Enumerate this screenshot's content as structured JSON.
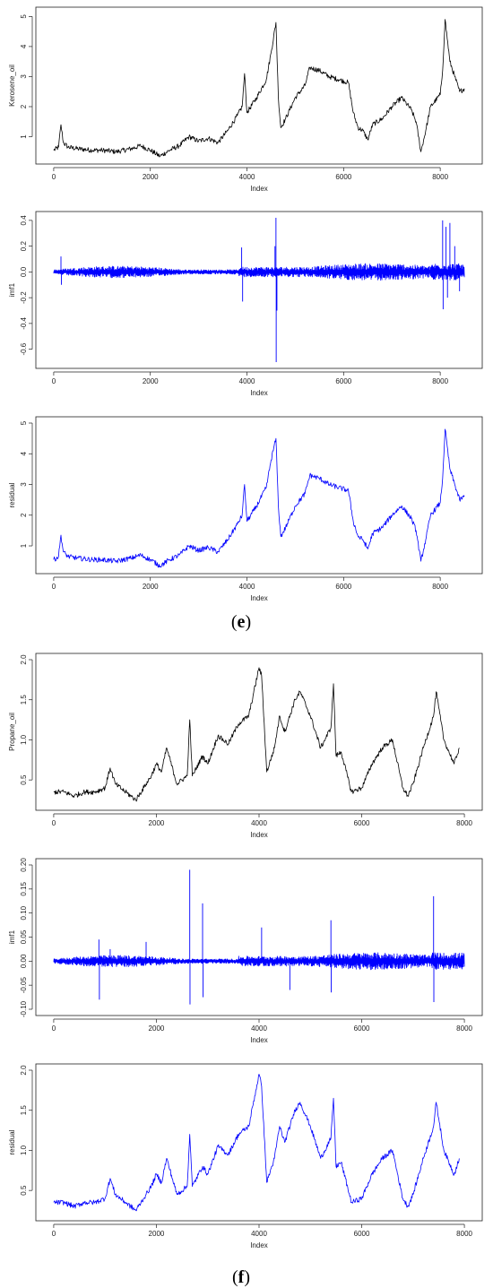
{
  "panel_labels": [
    "e",
    "f"
  ],
  "chart_data": [
    {
      "type": "line",
      "xlabel": "Index",
      "ylabel": "Kerosene_oil",
      "color": "#000000",
      "xlim": [
        0,
        8500
      ],
      "ylim": [
        0.3,
        5.1
      ],
      "xticks": [
        0,
        2000,
        4000,
        6000,
        8000
      ],
      "yticks": [
        1,
        2,
        3,
        4,
        5
      ],
      "ytick_labels": [
        "1",
        "2",
        "3",
        "4",
        "5"
      ],
      "x": [
        0,
        100,
        150,
        200,
        300,
        500,
        800,
        1000,
        1300,
        1600,
        1800,
        2000,
        2200,
        2400,
        2600,
        2800,
        3000,
        3200,
        3400,
        3600,
        3800,
        3900,
        3950,
        4000,
        4200,
        4400,
        4500,
        4600,
        4650,
        4700,
        4800,
        5000,
        5200,
        5300,
        5500,
        5700,
        5900,
        6100,
        6200,
        6300,
        6400,
        6500,
        6600,
        6800,
        7000,
        7200,
        7400,
        7500,
        7600,
        7700,
        7800,
        8000,
        8050,
        8100,
        8200,
        8300,
        8400,
        8500
      ],
      "y": [
        0.55,
        0.65,
        1.4,
        0.8,
        0.65,
        0.6,
        0.55,
        0.55,
        0.5,
        0.6,
        0.7,
        0.55,
        0.35,
        0.55,
        0.7,
        1.0,
        0.85,
        0.95,
        0.8,
        1.2,
        1.7,
        2.0,
        3.1,
        1.8,
        2.3,
        2.9,
        3.8,
        4.8,
        2.3,
        1.3,
        1.6,
        2.3,
        2.7,
        3.3,
        3.2,
        3.0,
        2.9,
        2.8,
        1.8,
        1.3,
        1.2,
        0.9,
        1.4,
        1.6,
        2.0,
        2.3,
        1.9,
        1.5,
        0.5,
        1.2,
        2.0,
        2.4,
        3.2,
        4.9,
        3.5,
        3.0,
        2.5,
        2.6
      ]
    },
    {
      "type": "line",
      "xlabel": "Index",
      "ylabel": "imf1",
      "color": "#0000ff",
      "xlim": [
        0,
        8500
      ],
      "ylim": [
        -0.7,
        0.42
      ],
      "xticks": [
        0,
        2000,
        4000,
        6000,
        8000
      ],
      "yticks": [
        -0.6,
        -0.4,
        -0.2,
        0.0,
        0.2,
        0.4
      ],
      "ytick_labels": [
        "-0.6",
        "-0.4",
        "-0.2",
        "0.0",
        "0.2",
        "0.4"
      ],
      "n": 8500,
      "spikes": [
        {
          "x": 150,
          "v": 0.12
        },
        {
          "x": 160,
          "v": -0.1
        },
        {
          "x": 3890,
          "v": 0.19
        },
        {
          "x": 3910,
          "v": -0.23
        },
        {
          "x": 4600,
          "v": 0.42
        },
        {
          "x": 4605,
          "v": -0.7
        },
        {
          "x": 4580,
          "v": 0.2
        },
        {
          "x": 4620,
          "v": -0.3
        },
        {
          "x": 8050,
          "v": 0.4
        },
        {
          "x": 8060,
          "v": -0.29
        },
        {
          "x": 8120,
          "v": 0.35
        },
        {
          "x": 8200,
          "v": 0.38
        },
        {
          "x": 8150,
          "v": -0.2
        },
        {
          "x": 8300,
          "v": 0.2
        },
        {
          "x": 8400,
          "v": -0.15
        }
      ]
    },
    {
      "type": "line",
      "xlabel": "Index",
      "ylabel": "residual",
      "color": "#0000ff",
      "xlim": [
        0,
        8500
      ],
      "ylim": [
        0.3,
        5.0
      ],
      "xticks": [
        0,
        2000,
        4000,
        6000,
        8000
      ],
      "yticks": [
        1,
        2,
        3,
        4,
        5
      ],
      "ytick_labels": [
        "1",
        "2",
        "3",
        "4",
        "5"
      ],
      "x": [
        0,
        100,
        150,
        200,
        300,
        500,
        800,
        1000,
        1300,
        1600,
        1800,
        2000,
        2200,
        2400,
        2600,
        2800,
        3000,
        3200,
        3400,
        3600,
        3800,
        3900,
        3950,
        4000,
        4200,
        4400,
        4500,
        4600,
        4650,
        4700,
        4800,
        5000,
        5200,
        5300,
        5500,
        5700,
        5900,
        6100,
        6200,
        6300,
        6400,
        6500,
        6600,
        6800,
        7000,
        7200,
        7400,
        7500,
        7600,
        7700,
        7800,
        8000,
        8050,
        8100,
        8200,
        8300,
        8400,
        8500
      ],
      "y": [
        0.55,
        0.65,
        1.35,
        0.8,
        0.65,
        0.6,
        0.55,
        0.55,
        0.5,
        0.6,
        0.7,
        0.55,
        0.35,
        0.55,
        0.7,
        1.0,
        0.85,
        0.95,
        0.8,
        1.2,
        1.7,
        2.0,
        3.0,
        1.8,
        2.3,
        2.9,
        3.8,
        4.5,
        2.3,
        1.3,
        1.6,
        2.3,
        2.7,
        3.3,
        3.2,
        3.0,
        2.9,
        2.8,
        1.8,
        1.3,
        1.2,
        0.9,
        1.4,
        1.6,
        2.0,
        2.3,
        1.9,
        1.5,
        0.5,
        1.2,
        2.0,
        2.4,
        3.2,
        4.8,
        3.5,
        3.0,
        2.5,
        2.6
      ]
    },
    {
      "type": "line",
      "xlabel": "Index",
      "ylabel": "Propane_oil",
      "color": "#000000",
      "xlim": [
        0,
        8000
      ],
      "ylim": [
        0.2,
        2.0
      ],
      "xticks": [
        0,
        2000,
        4000,
        6000,
        8000
      ],
      "yticks": [
        0.5,
        1.0,
        1.5,
        2.0
      ],
      "ytick_labels": [
        "0.5",
        "1.0",
        "1.5",
        "2.0"
      ],
      "x": [
        0,
        200,
        400,
        600,
        800,
        1000,
        1100,
        1200,
        1400,
        1600,
        1800,
        1900,
        2000,
        2100,
        2200,
        2400,
        2600,
        2650,
        2700,
        2900,
        3000,
        3200,
        3400,
        3600,
        3800,
        4000,
        4050,
        4150,
        4300,
        4400,
        4500,
        4700,
        4800,
        5000,
        5200,
        5400,
        5450,
        5500,
        5600,
        5800,
        6000,
        6200,
        6400,
        6600,
        6800,
        6900,
        7000,
        7200,
        7400,
        7450,
        7500,
        7600,
        7800,
        7900
      ],
      "y": [
        0.35,
        0.35,
        0.3,
        0.35,
        0.35,
        0.4,
        0.65,
        0.45,
        0.35,
        0.25,
        0.45,
        0.55,
        0.7,
        0.6,
        0.9,
        0.45,
        0.55,
        1.25,
        0.55,
        0.8,
        0.7,
        1.05,
        0.95,
        1.2,
        1.3,
        1.9,
        1.8,
        0.6,
        0.9,
        1.3,
        1.1,
        1.5,
        1.6,
        1.3,
        0.9,
        1.15,
        1.7,
        0.8,
        0.85,
        0.35,
        0.4,
        0.7,
        0.9,
        1.0,
        0.4,
        0.3,
        0.45,
        0.9,
        1.3,
        1.6,
        1.4,
        1.0,
        0.7,
        0.9
      ]
    },
    {
      "type": "line",
      "xlabel": "Index",
      "ylabel": "imf1",
      "color": "#0000ff",
      "xlim": [
        0,
        8000
      ],
      "ylim": [
        -0.1,
        0.2
      ],
      "xticks": [
        0,
        2000,
        4000,
        6000,
        8000
      ],
      "yticks": [
        -0.1,
        -0.05,
        0.0,
        0.05,
        0.1,
        0.15,
        0.2
      ],
      "ytick_labels": [
        "-0.10",
        "-0.05",
        "0.00",
        "0.05",
        "0.10",
        "0.15",
        "0.20"
      ],
      "n": 8000,
      "spikes": [
        {
          "x": 880,
          "v": 0.045
        },
        {
          "x": 890,
          "v": -0.08
        },
        {
          "x": 1100,
          "v": 0.025
        },
        {
          "x": 2650,
          "v": 0.19
        },
        {
          "x": 2655,
          "v": -0.09
        },
        {
          "x": 2900,
          "v": 0.12
        },
        {
          "x": 2910,
          "v": -0.075
        },
        {
          "x": 4050,
          "v": 0.07
        },
        {
          "x": 5400,
          "v": 0.085
        },
        {
          "x": 5405,
          "v": -0.065
        },
        {
          "x": 7400,
          "v": 0.135
        },
        {
          "x": 7405,
          "v": -0.085
        },
        {
          "x": 4600,
          "v": -0.06
        },
        {
          "x": 1800,
          "v": 0.04
        }
      ]
    },
    {
      "type": "line",
      "xlabel": "Index",
      "ylabel": "residual",
      "color": "#0000ff",
      "xlim": [
        0,
        8000
      ],
      "ylim": [
        0.2,
        2.0
      ],
      "xticks": [
        0,
        2000,
        4000,
        6000,
        8000
      ],
      "yticks": [
        0.5,
        1.0,
        1.5,
        2.0
      ],
      "ytick_labels": [
        "0.5",
        "1.0",
        "1.5",
        "2.0"
      ],
      "x": [
        0,
        200,
        400,
        600,
        800,
        1000,
        1100,
        1200,
        1400,
        1600,
        1800,
        1900,
        2000,
        2100,
        2200,
        2400,
        2600,
        2650,
        2700,
        2900,
        3000,
        3200,
        3400,
        3600,
        3800,
        4000,
        4050,
        4150,
        4300,
        4400,
        4500,
        4700,
        4800,
        5000,
        5200,
        5400,
        5450,
        5500,
        5600,
        5800,
        6000,
        6200,
        6400,
        6600,
        6800,
        6900,
        7000,
        7200,
        7400,
        7450,
        7500,
        7600,
        7800,
        7900
      ],
      "y": [
        0.35,
        0.35,
        0.3,
        0.35,
        0.35,
        0.4,
        0.65,
        0.45,
        0.35,
        0.25,
        0.45,
        0.55,
        0.7,
        0.6,
        0.9,
        0.45,
        0.55,
        1.2,
        0.55,
        0.8,
        0.7,
        1.05,
        0.95,
        1.2,
        1.3,
        1.95,
        1.8,
        0.6,
        0.9,
        1.3,
        1.1,
        1.5,
        1.6,
        1.3,
        0.9,
        1.15,
        1.65,
        0.8,
        0.85,
        0.35,
        0.4,
        0.7,
        0.9,
        1.0,
        0.4,
        0.3,
        0.45,
        0.9,
        1.3,
        1.6,
        1.4,
        1.0,
        0.7,
        0.9
      ]
    }
  ]
}
